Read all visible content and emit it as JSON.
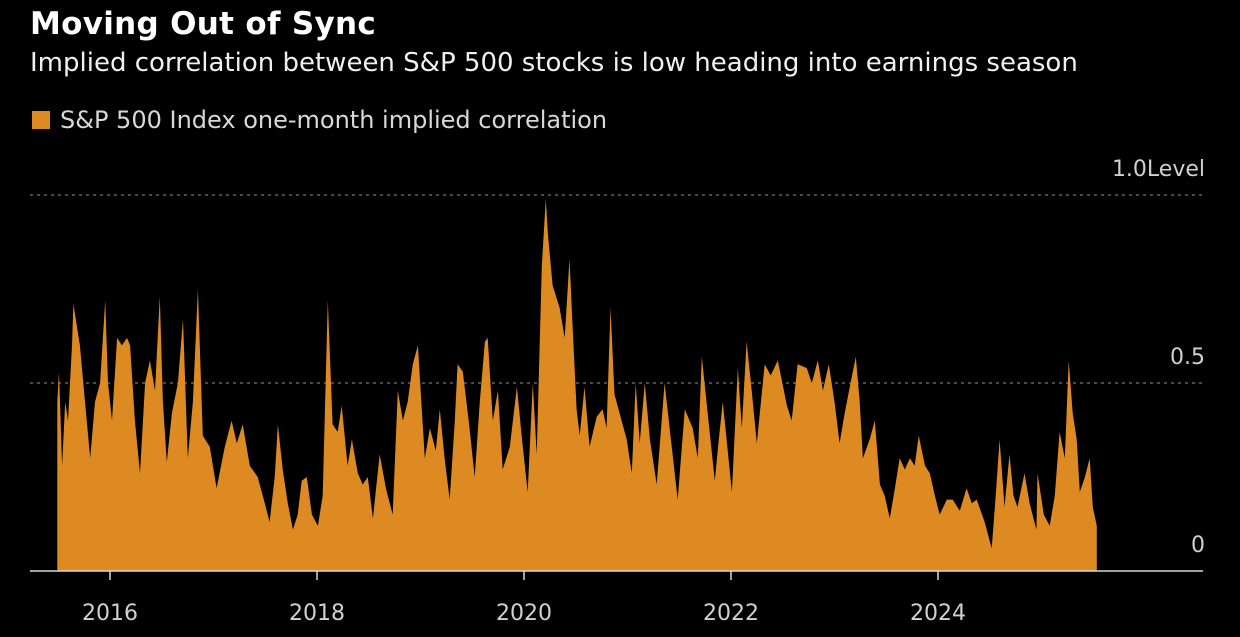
{
  "header": {
    "title": "Moving Out of Sync",
    "subtitle": "Implied correlation between S&P 500 stocks is low heading into earnings season"
  },
  "colors": {
    "series": "#dd8a22",
    "background": "#000000",
    "grid": "#777777"
  },
  "chart_data": {
    "type": "area",
    "title": "Moving Out of Sync",
    "subtitle": "Implied correlation between S&P 500 stocks is low heading into earnings season",
    "ylabel": "Level",
    "ylim": [
      0,
      1.0
    ],
    "yticks": [
      {
        "value": 0,
        "label": "0"
      },
      {
        "value": 0.5,
        "label": "0.5"
      },
      {
        "value": 1.0,
        "label": "1.0"
      }
    ],
    "xlim": [
      "2015-01-01",
      "2026-07-20"
    ],
    "xticks": [
      "2016",
      "2018",
      "2020",
      "2022",
      "2024"
    ],
    "grid": "horizontal dashed",
    "legend_position": "top-left",
    "series": [
      {
        "name": "S&P 500 Index one-month implied correlation",
        "points": [
          [
            "2015-06-29",
            0.45
          ],
          [
            "2015-07-05",
            0.53
          ],
          [
            "2015-07-16",
            0.28
          ],
          [
            "2015-07-27",
            0.45
          ],
          [
            "2015-08-06",
            0.4
          ],
          [
            "2015-08-20",
            0.6
          ],
          [
            "2015-08-25",
            0.71
          ],
          [
            "2015-09-17",
            0.6
          ],
          [
            "2015-10-05",
            0.45
          ],
          [
            "2015-10-23",
            0.3
          ],
          [
            "2015-11-09",
            0.45
          ],
          [
            "2015-11-27",
            0.5
          ],
          [
            "2015-12-15",
            0.72
          ],
          [
            "2015-12-25",
            0.5
          ],
          [
            "2016-01-08",
            0.4
          ],
          [
            "2016-01-26",
            0.62
          ],
          [
            "2016-02-12",
            0.6
          ],
          [
            "2016-03-01",
            0.62
          ],
          [
            "2016-03-12",
            0.6
          ],
          [
            "2016-03-29",
            0.4
          ],
          [
            "2016-04-16",
            0.26
          ],
          [
            "2016-05-04",
            0.5
          ],
          [
            "2016-05-21",
            0.56
          ],
          [
            "2016-06-08",
            0.48
          ],
          [
            "2016-06-25",
            0.73
          ],
          [
            "2016-07-06",
            0.45
          ],
          [
            "2016-07-20",
            0.29
          ],
          [
            "2016-08-07",
            0.42
          ],
          [
            "2016-08-28",
            0.5
          ],
          [
            "2016-09-15",
            0.67
          ],
          [
            "2016-10-02",
            0.3
          ],
          [
            "2016-10-20",
            0.45
          ],
          [
            "2016-11-07",
            0.75
          ],
          [
            "2016-11-24",
            0.36
          ],
          [
            "2016-12-19",
            0.33
          ],
          [
            "2017-01-12",
            0.22
          ],
          [
            "2017-02-10",
            0.33
          ],
          [
            "2017-03-06",
            0.4
          ],
          [
            "2017-03-24",
            0.34
          ],
          [
            "2017-04-14",
            0.39
          ],
          [
            "2017-05-09",
            0.28
          ],
          [
            "2017-06-06",
            0.25
          ],
          [
            "2017-07-01",
            0.18
          ],
          [
            "2017-07-18",
            0.13
          ],
          [
            "2017-08-05",
            0.25
          ],
          [
            "2017-08-16",
            0.39
          ],
          [
            "2017-09-02",
            0.27
          ],
          [
            "2017-09-20",
            0.18
          ],
          [
            "2017-10-08",
            0.11
          ],
          [
            "2017-10-25",
            0.15
          ],
          [
            "2017-11-08",
            0.24
          ],
          [
            "2017-11-26",
            0.25
          ],
          [
            "2017-12-14",
            0.15
          ],
          [
            "2018-01-04",
            0.12
          ],
          [
            "2018-01-21",
            0.2
          ],
          [
            "2018-02-08",
            0.72
          ],
          [
            "2018-02-25",
            0.39
          ],
          [
            "2018-03-15",
            0.37
          ],
          [
            "2018-03-29",
            0.44
          ],
          [
            "2018-04-19",
            0.28
          ],
          [
            "2018-05-04",
            0.35
          ],
          [
            "2018-05-25",
            0.26
          ],
          [
            "2018-06-11",
            0.23
          ],
          [
            "2018-06-29",
            0.25
          ],
          [
            "2018-07-17",
            0.14
          ],
          [
            "2018-08-10",
            0.31
          ],
          [
            "2018-09-01",
            0.22
          ],
          [
            "2018-09-25",
            0.15
          ],
          [
            "2018-10-13",
            0.48
          ],
          [
            "2018-10-31",
            0.4
          ],
          [
            "2018-11-17",
            0.45
          ],
          [
            "2018-12-05",
            0.55
          ],
          [
            "2018-12-23",
            0.6
          ],
          [
            "2019-01-16",
            0.3
          ],
          [
            "2019-02-03",
            0.38
          ],
          [
            "2019-02-24",
            0.32
          ],
          [
            "2019-03-10",
            0.43
          ],
          [
            "2019-03-27",
            0.3
          ],
          [
            "2019-04-14",
            0.19
          ],
          [
            "2019-05-02",
            0.4
          ],
          [
            "2019-05-12",
            0.55
          ],
          [
            "2019-05-30",
            0.53
          ],
          [
            "2019-06-20",
            0.4
          ],
          [
            "2019-07-11",
            0.25
          ],
          [
            "2019-07-29",
            0.45
          ],
          [
            "2019-08-16",
            0.61
          ],
          [
            "2019-08-26",
            0.62
          ],
          [
            "2019-09-13",
            0.4
          ],
          [
            "2019-10-01",
            0.48
          ],
          [
            "2019-10-18",
            0.27
          ],
          [
            "2019-11-12",
            0.33
          ],
          [
            "2019-12-07",
            0.49
          ],
          [
            "2019-12-25",
            0.35
          ],
          [
            "2020-01-14",
            0.21
          ],
          [
            "2020-02-01",
            0.5
          ],
          [
            "2020-02-15",
            0.31
          ],
          [
            "2020-03-04",
            0.81
          ],
          [
            "2020-03-18",
            0.99
          ],
          [
            "2020-03-25",
            0.9
          ],
          [
            "2020-04-11",
            0.76
          ],
          [
            "2020-05-06",
            0.7
          ],
          [
            "2020-05-24",
            0.62
          ],
          [
            "2020-06-10",
            0.83
          ],
          [
            "2020-06-21",
            0.65
          ],
          [
            "2020-07-05",
            0.43
          ],
          [
            "2020-07-16",
            0.36
          ],
          [
            "2020-08-02",
            0.49
          ],
          [
            "2020-08-20",
            0.33
          ],
          [
            "2020-09-14",
            0.41
          ],
          [
            "2020-10-05",
            0.43
          ],
          [
            "2020-10-19",
            0.38
          ],
          [
            "2020-11-02",
            0.7
          ],
          [
            "2020-11-16",
            0.47
          ],
          [
            "2020-12-11",
            0.4
          ],
          [
            "2020-12-29",
            0.35
          ],
          [
            "2021-01-16",
            0.26
          ],
          [
            "2021-01-30",
            0.5
          ],
          [
            "2021-02-13",
            0.34
          ],
          [
            "2021-03-03",
            0.5
          ],
          [
            "2021-03-21",
            0.35
          ],
          [
            "2021-04-14",
            0.23
          ],
          [
            "2021-05-12",
            0.5
          ],
          [
            "2021-06-03",
            0.35
          ],
          [
            "2021-06-27",
            0.19
          ],
          [
            "2021-07-22",
            0.43
          ],
          [
            "2021-08-19",
            0.38
          ],
          [
            "2021-09-06",
            0.3
          ],
          [
            "2021-09-20",
            0.57
          ],
          [
            "2021-10-08",
            0.44
          ],
          [
            "2021-11-05",
            0.24
          ],
          [
            "2021-11-19",
            0.35
          ],
          [
            "2021-12-03",
            0.45
          ],
          [
            "2022-01-04",
            0.21
          ],
          [
            "2022-01-25",
            0.54
          ],
          [
            "2022-02-08",
            0.38
          ],
          [
            "2022-02-25",
            0.61
          ],
          [
            "2022-03-15",
            0.48
          ],
          [
            "2022-04-02",
            0.34
          ],
          [
            "2022-04-30",
            0.55
          ],
          [
            "2022-05-21",
            0.52
          ],
          [
            "2022-06-15",
            0.56
          ],
          [
            "2022-07-17",
            0.44
          ],
          [
            "2022-08-03",
            0.4
          ],
          [
            "2022-08-24",
            0.55
          ],
          [
            "2022-09-25",
            0.54
          ],
          [
            "2022-10-13",
            0.5
          ],
          [
            "2022-11-03",
            0.56
          ],
          [
            "2022-11-21",
            0.48
          ],
          [
            "2022-12-12",
            0.55
          ],
          [
            "2023-01-01",
            0.45
          ],
          [
            "2023-01-19",
            0.34
          ],
          [
            "2023-02-06",
            0.42
          ],
          [
            "2023-02-24",
            0.49
          ],
          [
            "2023-03-17",
            0.57
          ],
          [
            "2023-03-31",
            0.45
          ],
          [
            "2023-04-11",
            0.3
          ],
          [
            "2023-05-05",
            0.35
          ],
          [
            "2023-05-23",
            0.4
          ],
          [
            "2023-06-10",
            0.23
          ],
          [
            "2023-06-27",
            0.2
          ],
          [
            "2023-07-15",
            0.14
          ],
          [
            "2023-08-02",
            0.22
          ],
          [
            "2023-08-19",
            0.3
          ],
          [
            "2023-09-06",
            0.27
          ],
          [
            "2023-09-24",
            0.3
          ],
          [
            "2023-10-11",
            0.28
          ],
          [
            "2023-10-25",
            0.36
          ],
          [
            "2023-11-16",
            0.28
          ],
          [
            "2023-12-03",
            0.26
          ],
          [
            "2023-12-21",
            0.2
          ],
          [
            "2024-01-07",
            0.15
          ],
          [
            "2024-02-01",
            0.19
          ],
          [
            "2024-02-22",
            0.19
          ],
          [
            "2024-03-18",
            0.16
          ],
          [
            "2024-04-11",
            0.22
          ],
          [
            "2024-04-29",
            0.18
          ],
          [
            "2024-05-17",
            0.19
          ],
          [
            "2024-06-14",
            0.13
          ],
          [
            "2024-07-09",
            0.06
          ],
          [
            "2024-07-23",
            0.2
          ],
          [
            "2024-08-06",
            0.35
          ],
          [
            "2024-08-23",
            0.17
          ],
          [
            "2024-09-10",
            0.31
          ],
          [
            "2024-09-24",
            0.2
          ],
          [
            "2024-10-08",
            0.17
          ],
          [
            "2024-11-02",
            0.26
          ],
          [
            "2024-11-20",
            0.18
          ],
          [
            "2024-12-14",
            0.11
          ],
          [
            "2024-12-18",
            0.26
          ],
          [
            "2025-01-09",
            0.15
          ],
          [
            "2025-01-30",
            0.12
          ],
          [
            "2025-02-17",
            0.2
          ],
          [
            "2025-03-06",
            0.37
          ],
          [
            "2025-03-24",
            0.3
          ],
          [
            "2025-04-07",
            0.56
          ],
          [
            "2025-04-21",
            0.42
          ],
          [
            "2025-05-05",
            0.35
          ],
          [
            "2025-05-16",
            0.21
          ],
          [
            "2025-06-03",
            0.25
          ],
          [
            "2025-06-20",
            0.3
          ],
          [
            "2025-07-01",
            0.17
          ],
          [
            "2025-07-15",
            0.12
          ]
        ]
      }
    ]
  }
}
